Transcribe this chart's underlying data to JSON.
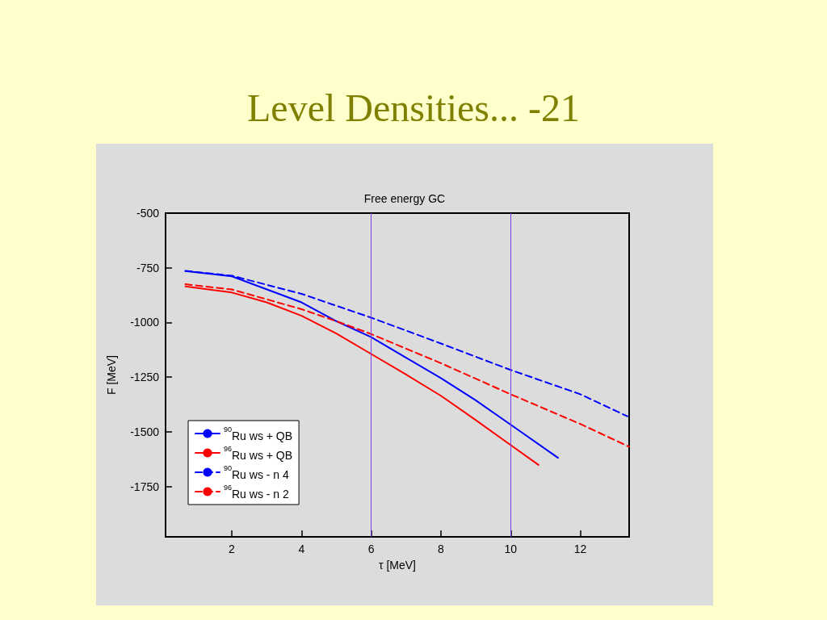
{
  "chart_data": {
    "type": "line",
    "title": "Level Densities... -21",
    "subtitle": "Free energy GC",
    "xlabel": "τ [MeV]",
    "ylabel": "F [MeV]",
    "xlim": [
      0.1,
      13.4
    ],
    "xticks": [
      2,
      4,
      6,
      8,
      10,
      12
    ],
    "ylim": [
      -1980,
      -500
    ],
    "yticks": [
      -500,
      -750,
      -1000,
      -1250,
      -1500,
      -1750
    ],
    "grid": false,
    "legend": "bottom left",
    "marker": "none",
    "ref_lines": [
      {
        "axis": "x",
        "value": 6,
        "color": "#7b3fe4"
      },
      {
        "axis": "x",
        "value": 10,
        "color": "#7b3fe4"
      }
    ],
    "series": [
      {
        "name": "$^{90}$Ru ws + QB",
        "color": "#0000ff",
        "line_style": "solid",
        "x": [
          0.67,
          2,
          4,
          5,
          6,
          7,
          8,
          9,
          10,
          11.36
        ],
        "values": [
          -765,
          -789,
          -908,
          -994,
          -1067,
          -1161,
          -1254,
          -1356,
          -1467,
          -1619
        ]
      },
      {
        "name": "$^{96}$Ru ws + QB",
        "color": "#ff0000",
        "line_style": "solid",
        "x": [
          0.67,
          2,
          3,
          4,
          5,
          6,
          7,
          8,
          9,
          10,
          10.8
        ],
        "values": [
          -835,
          -863,
          -908,
          -969,
          -1050,
          -1144,
          -1238,
          -1335,
          -1446,
          -1560,
          -1651
        ]
      },
      {
        "name": "$^{90}$Ru ws - n 4",
        "color": "#0000ff",
        "line_style": "dashed",
        "x": [
          0.67,
          2,
          4,
          6,
          8,
          10,
          12,
          13.35
        ],
        "values": [
          -764,
          -786,
          -869,
          -978,
          -1096,
          -1217,
          -1328,
          -1429
        ]
      },
      {
        "name": "$^{96}$Ru ws - n 2",
        "color": "#ff0000",
        "line_style": "dashed",
        "x": [
          0.67,
          2,
          4,
          5,
          6,
          8,
          10,
          12,
          13.4
        ],
        "values": [
          -825,
          -849,
          -939,
          -994,
          -1053,
          -1186,
          -1328,
          -1464,
          -1568
        ]
      }
    ]
  }
}
